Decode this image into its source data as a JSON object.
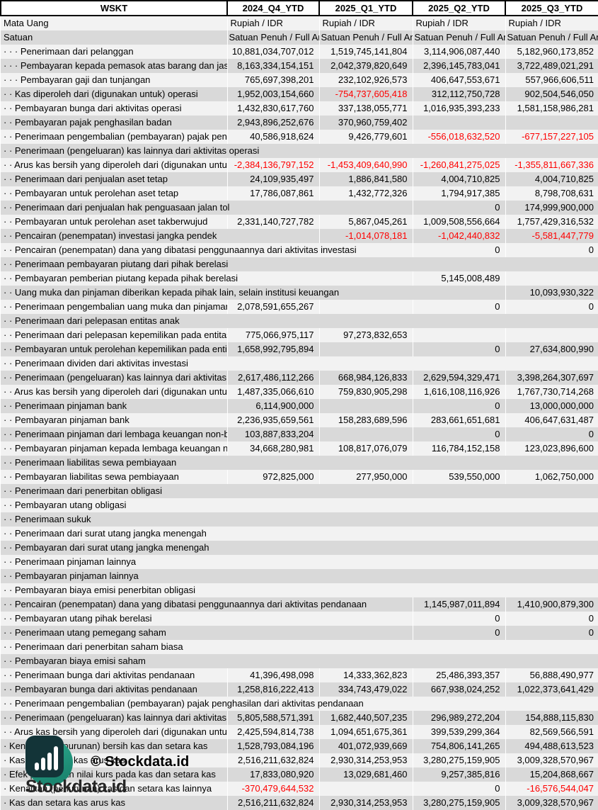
{
  "header": {
    "company": "WSKT",
    "periods": [
      "2024_Q4_YTD",
      "2025_Q1_YTD",
      "2025_Q2_YTD",
      "2025_Q3_YTD"
    ]
  },
  "meta": {
    "currency": {
      "label": "Mata Uang",
      "values": [
        "Rupiah / IDR",
        "Rupiah / IDR",
        "Rupiah / IDR",
        "Rupiah / IDR"
      ]
    },
    "unit": {
      "label": "Satuan",
      "values": [
        "Satuan Penuh / Full Amount",
        "Satuan Penuh / Full Amount",
        "Satuan Penuh / Full Amount",
        "Satuan Penuh / Full Amount"
      ]
    }
  },
  "rows": [
    {
      "label": "Penerimaan dari pelanggan",
      "indent": 3,
      "values": [
        "10,881,034,707,012",
        "1,519,745,141,804",
        "3,114,906,087,440",
        "5,182,960,173,852"
      ]
    },
    {
      "label": "Pembayaran kepada pemasok atas barang dan jasa",
      "indent": 3,
      "values": [
        "8,163,334,154,151",
        "2,042,379,820,649",
        "2,396,145,783,041",
        "3,722,489,021,291"
      ]
    },
    {
      "label": "Pembayaran gaji dan tunjangan",
      "indent": 3,
      "values": [
        "765,697,398,201",
        "232,102,926,573",
        "406,647,553,671",
        "557,966,606,511"
      ]
    },
    {
      "label": "Kas diperoleh dari (digunakan untuk) operasi",
      "indent": 2,
      "values": [
        "1,952,003,154,660",
        "-754,737,605,418",
        "312,112,750,728",
        "902,504,546,050"
      ]
    },
    {
      "label": "Pembayaran bunga dari aktivitas operasi",
      "indent": 2,
      "values": [
        "1,432,830,617,760",
        "337,138,055,771",
        "1,016,935,393,233",
        "1,581,158,986,281"
      ]
    },
    {
      "label": "Pembayaran pajak penghasilan badan",
      "indent": 2,
      "values": [
        "2,943,896,252,676",
        "370,960,759,402",
        "",
        ""
      ]
    },
    {
      "label": "Penerimaan pengembalian (pembayaran) pajak penghasilan dari aktivitas operasi",
      "indent": 2,
      "values": [
        "40,586,918,624",
        "9,426,779,601",
        "-556,018,632,520",
        "-677,157,227,105"
      ]
    },
    {
      "label": "Penerimaan (pengeluaran) kas lainnya dari aktivitas operasi",
      "indent": 2,
      "values": [
        "",
        "",
        "",
        ""
      ]
    },
    {
      "label": "Arus kas bersih yang diperoleh dari (digunakan untuk) aktivitas operasi",
      "indent": 2,
      "values": [
        "-2,384,136,797,152",
        "-1,453,409,640,990",
        "-1,260,841,275,025",
        "-1,355,811,667,336"
      ]
    },
    {
      "label": "Penerimaan dari penjualan aset tetap",
      "indent": 2,
      "values": [
        "24,109,935,497",
        "1,886,841,580",
        "4,004,710,825",
        "4,004,710,825"
      ]
    },
    {
      "label": "Pembayaran untuk perolehan aset tetap",
      "indent": 2,
      "values": [
        "17,786,087,861",
        "1,432,772,326",
        "1,794,917,385",
        "8,798,708,631"
      ]
    },
    {
      "label": "Penerimaan dari penjualan hak penguasaan jalan tol",
      "indent": 2,
      "values": [
        "",
        "",
        "0",
        "174,999,900,000"
      ]
    },
    {
      "label": "Pembayaran untuk perolehan aset takberwujud",
      "indent": 2,
      "values": [
        "2,331,140,727,782",
        "5,867,045,261",
        "1,009,508,556,664",
        "1,757,429,316,532"
      ]
    },
    {
      "label": "Pencairan (penempatan) investasi jangka pendek",
      "indent": 2,
      "values": [
        "",
        "-1,014,078,181",
        "-1,042,440,832",
        "-5,581,447,779"
      ]
    },
    {
      "label": "Pencairan (penempatan) dana yang dibatasi penggunaannya dari aktivitas investasi",
      "indent": 2,
      "values": [
        "",
        "",
        "0",
        "0"
      ]
    },
    {
      "label": "Penerimaan pembayaran piutang dari pihak berelasi",
      "indent": 2,
      "values": [
        "",
        "",
        "",
        ""
      ]
    },
    {
      "label": "Pembayaran pemberian piutang kepada pihak berelasi",
      "indent": 2,
      "values": [
        "",
        "",
        "5,145,008,489",
        ""
      ]
    },
    {
      "label": "Uang muka dan pinjaman diberikan kepada pihak lain, selain institusi keuangan",
      "indent": 2,
      "values": [
        "",
        "",
        "",
        "10,093,930,322"
      ]
    },
    {
      "label": "Penerimaan pengembalian uang muka dan pinjaman diberikan kepada pihak lain",
      "indent": 2,
      "values": [
        "2,078,591,655,267",
        "",
        "0",
        "0"
      ]
    },
    {
      "label": "Penerimaan dari pelepasan entitas anak",
      "indent": 2,
      "values": [
        "",
        "",
        "",
        ""
      ]
    },
    {
      "label": "Penerimaan dari pelepasan kepemilikan pada entitas anak",
      "indent": 2,
      "values": [
        "775,066,975,117",
        "97,273,832,653",
        "",
        ""
      ]
    },
    {
      "label": "Pembayaran untuk perolehan kepemilikan pada entitas anak",
      "indent": 2,
      "values": [
        "1,658,992,795,894",
        "",
        "0",
        "27,634,800,990"
      ]
    },
    {
      "label": "Penerimaan dividen dari aktivitas investasi",
      "indent": 2,
      "values": [
        "",
        "",
        "",
        ""
      ]
    },
    {
      "label": "Penerimaan (pengeluaran) kas lainnya dari aktivitas investasi",
      "indent": 2,
      "values": [
        "2,617,486,112,266",
        "668,984,126,833",
        "2,629,594,329,471",
        "3,398,264,307,697"
      ]
    },
    {
      "label": "Arus kas bersih yang diperoleh dari (digunakan untuk) aktivitas investasi",
      "indent": 2,
      "values": [
        "1,487,335,066,610",
        "759,830,905,298",
        "1,616,108,116,926",
        "1,767,730,714,268"
      ]
    },
    {
      "label": "Penerimaan pinjaman bank",
      "indent": 2,
      "values": [
        "6,114,900,000",
        "",
        "0",
        "13,000,000,000"
      ]
    },
    {
      "label": "Pembayaran pinjaman bank",
      "indent": 2,
      "values": [
        "2,236,935,659,561",
        "158,283,689,596",
        "283,661,651,681",
        "406,647,631,487"
      ]
    },
    {
      "label": "Penerimaan pinjaman dari lembaga keuangan non-bank",
      "indent": 2,
      "values": [
        "103,887,833,204",
        "",
        "0",
        "0"
      ]
    },
    {
      "label": "Pembayaran pinjaman kepada lembaga keuangan non-bank",
      "indent": 2,
      "values": [
        "34,668,280,981",
        "108,817,076,079",
        "116,784,152,158",
        "123,023,896,600"
      ]
    },
    {
      "label": "Penerimaan liabilitas sewa pembiayaan",
      "indent": 2,
      "values": [
        "",
        "",
        "",
        ""
      ]
    },
    {
      "label": "Pembayaran liabilitas sewa pembiayaan",
      "indent": 2,
      "values": [
        "972,825,000",
        "277,950,000",
        "539,550,000",
        "1,062,750,000"
      ]
    },
    {
      "label": "Penerimaan dari penerbitan obligasi",
      "indent": 2,
      "values": [
        "",
        "",
        "",
        ""
      ]
    },
    {
      "label": "Pembayaran utang obligasi",
      "indent": 2,
      "values": [
        "",
        "",
        "",
        ""
      ]
    },
    {
      "label": "Penerimaan sukuk",
      "indent": 2,
      "values": [
        "",
        "",
        "",
        ""
      ]
    },
    {
      "label": "Penerimaan dari surat utang jangka menengah",
      "indent": 2,
      "values": [
        "",
        "",
        "",
        ""
      ]
    },
    {
      "label": "Pembayaran dari surat utang jangka menengah",
      "indent": 2,
      "values": [
        "",
        "",
        "",
        ""
      ]
    },
    {
      "label": "Penerimaan pinjaman lainnya",
      "indent": 2,
      "values": [
        "",
        "",
        "",
        ""
      ]
    },
    {
      "label": "Pembayaran pinjaman lainnya",
      "indent": 2,
      "values": [
        "",
        "",
        "",
        ""
      ]
    },
    {
      "label": "Pembayaran biaya emisi penerbitan obligasi",
      "indent": 2,
      "values": [
        "",
        "",
        "",
        ""
      ]
    },
    {
      "label": "Pencairan (penempatan) dana yang dibatasi penggunaannya dari aktivitas pendanaan",
      "indent": 2,
      "values": [
        "",
        "",
        "1,145,987,011,894",
        "1,410,900,879,300"
      ]
    },
    {
      "label": "Pembayaran utang pihak berelasi",
      "indent": 2,
      "values": [
        "",
        "",
        "0",
        "0"
      ]
    },
    {
      "label": "Penerimaan utang pemegang saham",
      "indent": 2,
      "values": [
        "",
        "",
        "0",
        "0"
      ]
    },
    {
      "label": "Penerimaan dari penerbitan saham biasa",
      "indent": 2,
      "values": [
        "",
        "",
        "",
        ""
      ]
    },
    {
      "label": "Pembayaran biaya emisi saham",
      "indent": 2,
      "values": [
        "",
        "",
        "",
        ""
      ]
    },
    {
      "label": "Penerimaan bunga dari aktivitas pendanaan",
      "indent": 2,
      "values": [
        "41,396,498,098",
        "14,333,362,823",
        "25,486,393,357",
        "56,888,490,977"
      ]
    },
    {
      "label": "Pembayaran bunga dari aktivitas pendanaan",
      "indent": 2,
      "values": [
        "1,258,816,222,413",
        "334,743,479,022",
        "667,938,024,252",
        "1,022,373,641,429"
      ]
    },
    {
      "label": "Penerimaan pengembalian (pembayaran) pajak penghasilan dari aktivitas pendanaan",
      "indent": 2,
      "values": [
        "",
        "",
        "",
        ""
      ]
    },
    {
      "label": "Penerimaan (pengeluaran) kas lainnya dari aktivitas pendanaan",
      "indent": 2,
      "values": [
        "5,805,588,571,391",
        "1,682,440,507,235",
        "296,989,272,204",
        "154,888,115,830"
      ]
    },
    {
      "label": "Arus kas bersih yang diperoleh dari (digunakan untuk) aktivitas pendanaan",
      "indent": 2,
      "values": [
        "2,425,594,814,738",
        "1,094,651,675,361",
        "399,539,299,364",
        "82,569,566,591"
      ]
    },
    {
      "label": "Kenaikan (penurunan) bersih kas dan setara kas",
      "indent": 1,
      "values": [
        "1,528,793,084,196",
        "401,072,939,669",
        "754,806,141,265",
        "494,488,613,523"
      ]
    },
    {
      "label": "Kas dan setara kas arus kas",
      "indent": 1,
      "values": [
        "2,516,211,632,824",
        "2,930,314,253,953",
        "3,280,275,159,905",
        "3,009,328,570,967"
      ]
    },
    {
      "label": "Efek perubahan nilai kurs pada kas dan setara kas",
      "indent": 1,
      "values": [
        "17,833,080,920",
        "13,029,681,460",
        "9,257,385,816",
        "15,204,868,667"
      ]
    },
    {
      "label": "Kenaikan (penurunan) kas dan setara kas lainnya",
      "indent": 1,
      "values": [
        "-370,479,644,532",
        "",
        "0",
        "-16,576,544,047"
      ]
    },
    {
      "label": "Kas dan setara kas arus kas",
      "indent": 1,
      "values": [
        "2,516,211,632,824",
        "2,930,314,253,953",
        "3,280,275,159,905",
        "3,009,328,570,967"
      ]
    }
  ],
  "watermark": {
    "center_text": "© Stockdata.id",
    "logo_text": "Stockdata.id"
  },
  "colors": {
    "negative_value": "#fe0000",
    "row_light": "#f2f2f2",
    "row_dark": "#d9d9d9",
    "logo_square": "#133438",
    "logo_circle": "#27997e"
  }
}
